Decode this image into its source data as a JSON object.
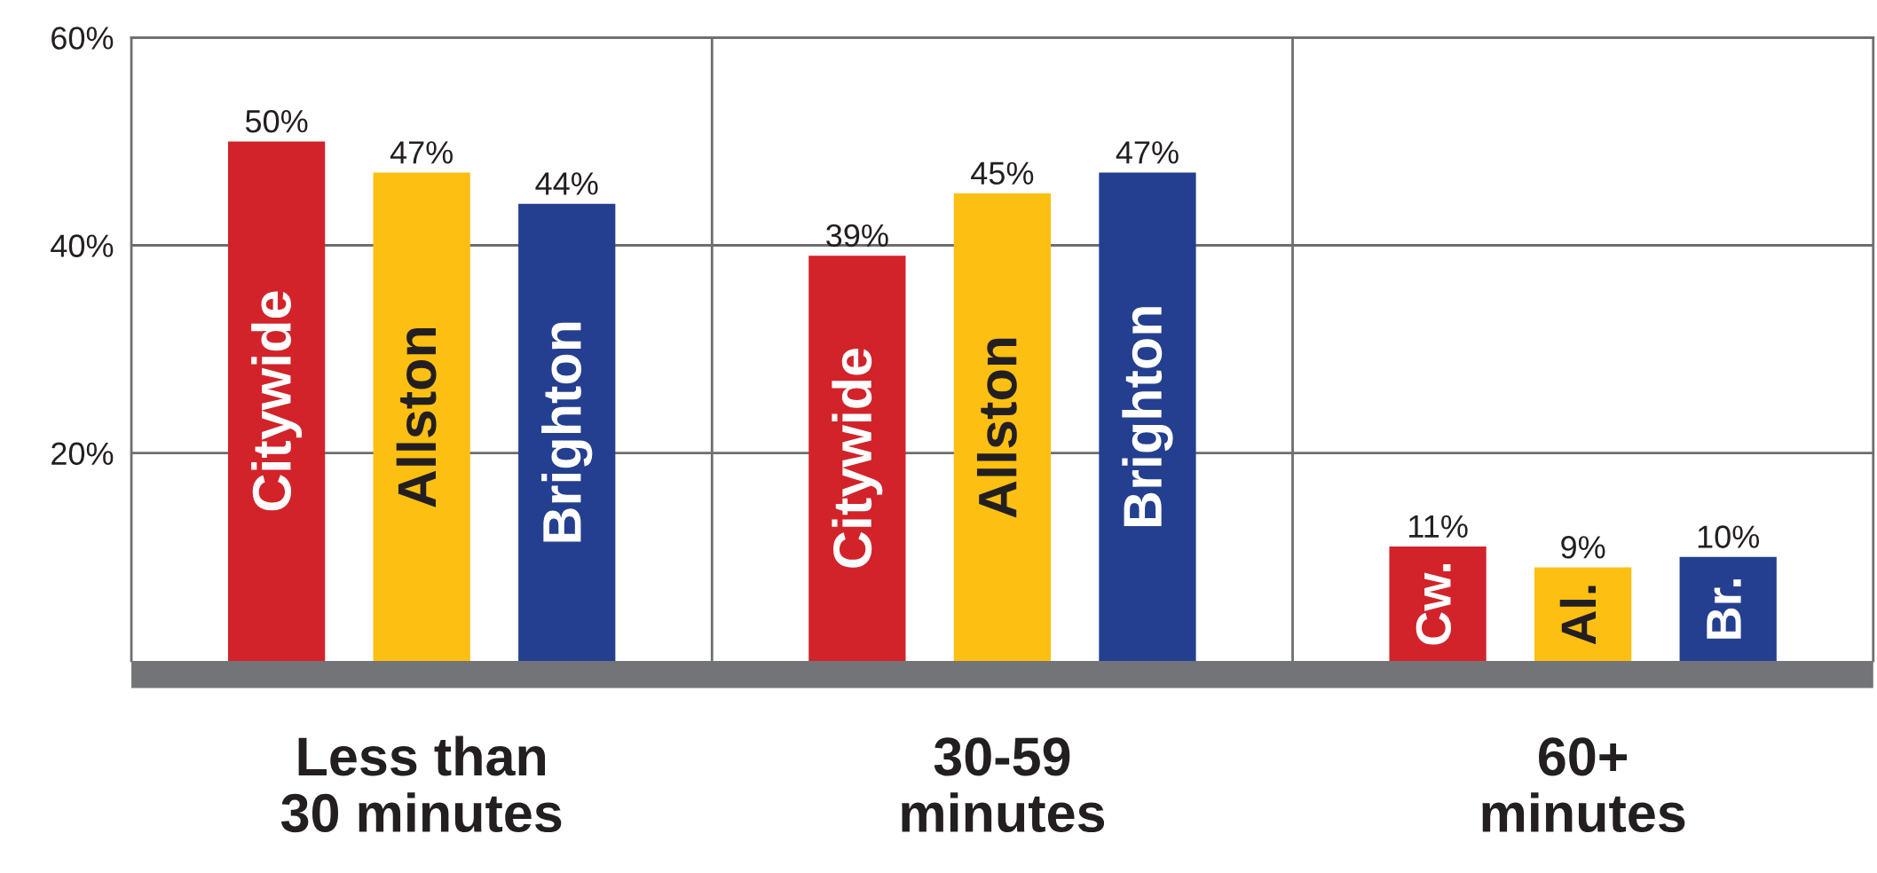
{
  "chart_data": {
    "type": "bar",
    "categories": [
      "Less than\n30 minutes",
      "30-59\nminutes",
      "60+\nminutes"
    ],
    "series": [
      {
        "name": "Citywide",
        "color": "#d2232a",
        "values": [
          50,
          39,
          11
        ],
        "value_labels": [
          "50%",
          "39%",
          "11%"
        ]
      },
      {
        "name": "Allston",
        "color": "#fcbf12",
        "values": [
          47,
          45,
          9
        ],
        "value_labels": [
          "47%",
          "45%",
          "9%"
        ]
      },
      {
        "name": "Brighton",
        "color": "#243f8f",
        "values": [
          44,
          47,
          10
        ],
        "value_labels": [
          "44%",
          "47%",
          "10%"
        ]
      }
    ],
    "ylim": [
      0,
      60
    ],
    "yticks": [
      {
        "value": 20,
        "label": "20%"
      },
      {
        "value": 40,
        "label": "40%"
      },
      {
        "value": 60,
        "label": "60%"
      }
    ],
    "grid": "y",
    "annotations": [
      "Cw.",
      "Al.",
      "Br."
    ]
  }
}
